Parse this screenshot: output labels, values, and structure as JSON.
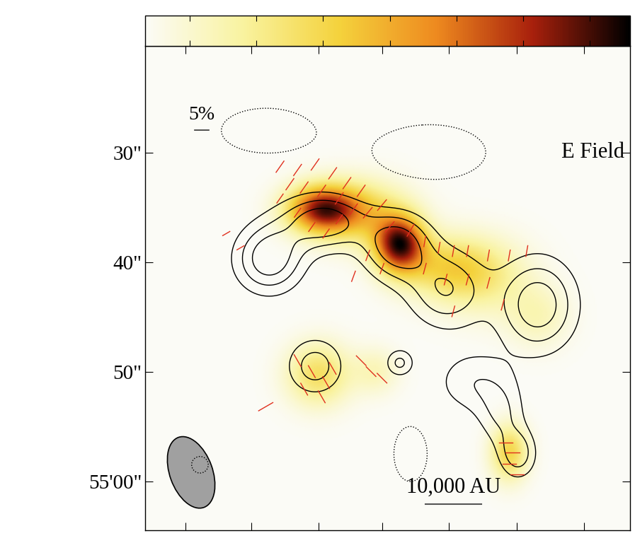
{
  "chart_data": {
    "type": "polarization_map",
    "tick_labels": "y",
    "xlim": [
      0,
      44.2
    ],
    "xticks": [
      3.7,
      9.7,
      15.8,
      21.6,
      27.7,
      33.9,
      40.0
    ],
    "ylim": [
      64.5,
      20.3
    ],
    "yticks": [
      {
        "value": 30,
        "label": "30\""
      },
      {
        "value": 40,
        "label": "40\""
      },
      {
        "value": 50,
        "label": "50\""
      },
      {
        "value": 60,
        "label": "55'00\""
      }
    ],
    "colorbar": {
      "range": [
        0,
        1.09
      ],
      "ticks": [
        0.1,
        0.25,
        0.4,
        0.55,
        0.7,
        0.85,
        1.0
      ]
    },
    "image_components": [
      [
        16.1,
        35.2,
        0.8,
        2.2,
        1.5
      ],
      [
        23.2,
        38.4,
        0.95,
        1.6,
        1.8
      ],
      [
        19.5,
        35.5,
        0.4,
        3,
        2
      ],
      [
        27.5,
        40.5,
        0.35,
        3,
        2
      ],
      [
        31,
        41.5,
        0.2,
        3,
        2.5
      ],
      [
        15.8,
        50.3,
        0.35,
        2,
        2
      ],
      [
        33.2,
        57.4,
        0.4,
        1.2,
        1.8
      ],
      [
        35.8,
        45,
        0.15,
        2,
        2
      ],
      [
        21,
        50,
        0.15,
        1.5,
        1.5
      ]
    ],
    "contour_components": [
      [
        11.3,
        39.7,
        1,
        2.2,
        2.2
      ],
      [
        16.3,
        36.3,
        1,
        2.8,
        1.8
      ],
      [
        23,
        38.5,
        1,
        2.2,
        2.2
      ],
      [
        27.5,
        42.5,
        0.8,
        2.5,
        2.5
      ],
      [
        35.8,
        43.9,
        1,
        2.5,
        3
      ],
      [
        15.5,
        49.5,
        0.7,
        1.8,
        1.8
      ],
      [
        34,
        57.5,
        0.7,
        1.2,
        1.6
      ],
      [
        23.2,
        49.2,
        0.6,
        0.9,
        0.9
      ],
      [
        30,
        51,
        0.5,
        2.5,
        2
      ],
      [
        32.5,
        54,
        0.5,
        1.5,
        2
      ],
      [
        11,
        28,
        -0.5,
        4,
        2
      ],
      [
        26,
        30,
        -0.5,
        5,
        2.5
      ],
      [
        24.2,
        57.5,
        -0.5,
        1.5,
        2.5
      ],
      [
        5,
        58.5,
        -0.4,
        1,
        1
      ]
    ],
    "contour_levels": [
      -0.3,
      0.3,
      0.55,
      0.8
    ],
    "vectors": [
      [
        12.3,
        31.3,
        55,
        5
      ],
      [
        13.9,
        31.6,
        55,
        5
      ],
      [
        15.5,
        31.1,
        55,
        5
      ],
      [
        17.1,
        31.9,
        55,
        5
      ],
      [
        18.4,
        32.8,
        55,
        5
      ],
      [
        19.7,
        33.5,
        55,
        5
      ],
      [
        14.5,
        33.2,
        55,
        5
      ],
      [
        16.1,
        33.5,
        55,
        5
      ],
      [
        17.7,
        34.2,
        55,
        5
      ],
      [
        19.0,
        35.2,
        55,
        5
      ],
      [
        13.2,
        32.9,
        55,
        5
      ],
      [
        12.3,
        34.2,
        55,
        4
      ],
      [
        13.9,
        35.5,
        55,
        4
      ],
      [
        15.2,
        36.8,
        55,
        4
      ],
      [
        16.5,
        37.4,
        55,
        4
      ],
      [
        17.7,
        36.1,
        55,
        4
      ],
      [
        20.3,
        35.5,
        50,
        5
      ],
      [
        21.6,
        34.8,
        50,
        5
      ],
      [
        22.3,
        36.8,
        50,
        5
      ],
      [
        24.2,
        37.1,
        60,
        5
      ],
      [
        25.5,
        38.1,
        80,
        4
      ],
      [
        26.8,
        38.7,
        80,
        4
      ],
      [
        28.1,
        39.0,
        80,
        4
      ],
      [
        29.4,
        39.0,
        80,
        4
      ],
      [
        31.3,
        39.4,
        80,
        4
      ],
      [
        33.2,
        39.4,
        80,
        4
      ],
      [
        34.8,
        39.0,
        80,
        4
      ],
      [
        25.5,
        40.6,
        75,
        4
      ],
      [
        27.4,
        41.6,
        75,
        4
      ],
      [
        29.4,
        41.6,
        75,
        4
      ],
      [
        31.3,
        41.9,
        75,
        4
      ],
      [
        32.6,
        43.9,
        75,
        4
      ],
      [
        20.3,
        39.4,
        70,
        4
      ],
      [
        19.0,
        41.3,
        70,
        4
      ],
      [
        21.6,
        40.6,
        70,
        4
      ],
      [
        28.1,
        44.5,
        75,
        4
      ],
      [
        13.9,
        49.0,
        -60,
        5
      ],
      [
        15.2,
        50.0,
        -60,
        5
      ],
      [
        16.5,
        51.0,
        -60,
        5
      ],
      [
        14.5,
        51.6,
        -60,
        5
      ],
      [
        16.1,
        52.3,
        -60,
        5
      ],
      [
        17.1,
        49.7,
        -60,
        5
      ],
      [
        19.7,
        49.0,
        -45,
        5
      ],
      [
        20.6,
        50.0,
        -45,
        5
      ],
      [
        21.6,
        50.6,
        -45,
        5
      ],
      [
        11.0,
        53.2,
        30,
        6
      ],
      [
        32.9,
        56.5,
        0,
        5
      ],
      [
        33.5,
        57.4,
        0,
        5
      ],
      [
        33.2,
        58.4,
        0,
        5
      ],
      [
        33.9,
        59.4,
        0,
        5
      ],
      [
        7.4,
        37.4,
        30,
        3
      ],
      [
        8.7,
        38.7,
        30,
        3
      ]
    ],
    "vector_key": {
      "label": "5%",
      "percent": 5
    },
    "color": "#e0301e",
    "annotations": [
      {
        "text": "E Field"
      }
    ],
    "scale_bar": {
      "label": "10,000 AU",
      "length": 5.1
    },
    "beam": {
      "major": 6.8,
      "minor": 3.9,
      "angle": -20
    }
  }
}
